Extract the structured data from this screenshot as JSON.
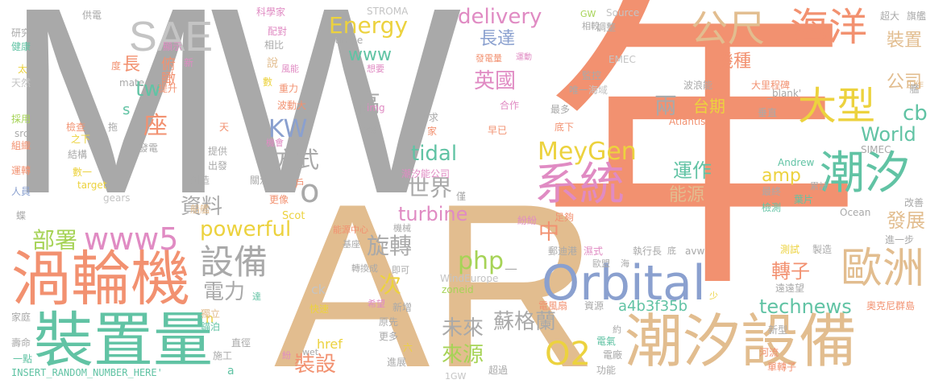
{
  "colors": {
    "gray": "#a9a9a9",
    "orange": "#f29170",
    "tan": "#e2bd8f",
    "teal": "#61c3a4",
    "blue": "#8aa0cf",
    "pink": "#e08bc3",
    "yellow": "#ecd23e",
    "green": "#a6d356",
    "ltgray": "#c4c4c4"
  },
  "words": [
    {
      "id": "mw",
      "text": "MW"
    },
    {
      "id": "nian",
      "text": "年"
    },
    {
      "id": "ar",
      "text": "AR"
    },
    {
      "id": "wolunji",
      "text": "渦輪機"
    },
    {
      "id": "zhuangzhiliang",
      "text": "裝置量"
    },
    {
      "id": "chaoxishebei",
      "text": "潮汐設備"
    },
    {
      "id": "orbital",
      "text": "Orbital"
    },
    {
      "id": "xitong",
      "text": "系統"
    },
    {
      "id": "chaoxi",
      "text": "潮汐"
    },
    {
      "id": "ouzhou",
      "text": "歐洲"
    },
    {
      "id": "haiyang",
      "text": "海洋"
    },
    {
      "id": "gongchi",
      "text": "公尺"
    },
    {
      "id": "daxing",
      "text": "大型"
    },
    {
      "id": "sae",
      "text": "SAE"
    },
    {
      "id": "www5",
      "text": "www5"
    },
    {
      "id": "shebei",
      "text": "設備"
    },
    {
      "id": "o2",
      "text": "O2"
    },
    {
      "id": "meygen",
      "text": "MeyGen"
    },
    {
      "id": "energy",
      "text": "Energy"
    },
    {
      "id": "delivery",
      "text": "delivery"
    },
    {
      "id": "kw",
      "text": "KW"
    },
    {
      "id": "fangshi",
      "text": "方式"
    },
    {
      "id": "shijie",
      "text": "世界"
    },
    {
      "id": "tidal",
      "text": "tidal"
    },
    {
      "id": "turbine",
      "text": "turbine"
    },
    {
      "id": "powerful",
      "text": "powerful"
    },
    {
      "id": "ziliao",
      "text": "資料"
    },
    {
      "id": "bushu",
      "text": "部署"
    },
    {
      "id": "dianli",
      "text": "電力"
    },
    {
      "id": "xuanzhuan",
      "text": "旋轉"
    },
    {
      "id": "php",
      "text": "php"
    },
    {
      "id": "ci",
      "text": "次"
    },
    {
      "id": "weilai",
      "text": "未來"
    },
    {
      "id": "sugelan",
      "text": "蘇格蘭"
    },
    {
      "id": "laiyuan",
      "text": "來源"
    },
    {
      "id": "zhuangshe",
      "text": "裝設"
    },
    {
      "id": "technews",
      "text": "technews"
    },
    {
      "id": "zhuanzi",
      "text": "轉子"
    },
    {
      "id": "fazhan",
      "text": "發展"
    },
    {
      "id": "yunzuo",
      "text": "運作"
    },
    {
      "id": "nengyuan",
      "text": "能源"
    },
    {
      "id": "amp",
      "text": "amp"
    },
    {
      "id": "world",
      "text": "World"
    },
    {
      "id": "cb",
      "text": "cb"
    },
    {
      "id": "liang",
      "text": "兩"
    },
    {
      "id": "taiqi",
      "text": "台期"
    },
    {
      "id": "yingguo",
      "text": "英國"
    },
    {
      "id": "gao",
      "text": "高"
    },
    {
      "id": "www",
      "text": "www"
    },
    {
      "id": "zhangda",
      "text": "長達"
    },
    {
      "id": "jizhong",
      "text": "機種"
    },
    {
      "id": "zhuangzhi",
      "text": "裝置"
    },
    {
      "id": "gongsi",
      "text": "公司"
    },
    {
      "id": "zuo",
      "text": "座"
    },
    {
      "id": "tw",
      "text": "tw"
    },
    {
      "id": "zhang",
      "text": "長"
    },
    {
      "id": "fukan",
      "text": "俯瞰"
    },
    {
      "id": "zhong",
      "text": "中"
    },
    {
      "id": "a4b3f35b",
      "text": "a4b3f35b"
    },
    {
      "id": "href",
      "text": "href"
    },
    {
      "id": "insert",
      "text": "INSERT_RANDOM_NUMBER_HERE'"
    },
    {
      "id": "stroma",
      "text": "STROMA"
    },
    {
      "id": "europe",
      "text": "Europe"
    },
    {
      "id": "atlantis",
      "text": "Atlantis"
    },
    {
      "id": "simec",
      "text": "SIMEC"
    },
    {
      "id": "andrew",
      "text": "Andrew"
    },
    {
      "id": "ocean",
      "text": "Ocean"
    },
    {
      "id": "windeurope",
      "text": "WindEurope"
    },
    {
      "id": "zoneid",
      "text": "zoneid"
    },
    {
      "id": "ck",
      "text": "ck"
    },
    {
      "id": "scot",
      "text": "Scot"
    },
    {
      "id": "target",
      "text": "target"
    },
    {
      "id": "gears",
      "text": "gears"
    },
    {
      "id": "blank",
      "text": "_blank'"
    },
    {
      "id": "emec",
      "text": "EMEC"
    },
    {
      "id": "source",
      "text": "Source"
    },
    {
      "id": "gw",
      "text": "GW"
    },
    {
      "id": "img",
      "text": "img"
    },
    {
      "id": "mate",
      "text": "mate"
    },
    {
      "id": "src",
      "text": "src"
    },
    {
      "id": "avw",
      "text": "avw"
    },
    {
      "id": "wet",
      "text": "wet"
    },
    {
      "id": "gw1",
      "text": "1GW"
    },
    {
      "id": "a",
      "text": "a"
    },
    {
      "id": "n",
      "text": "n"
    },
    {
      "id": "s",
      "text": "s"
    },
    {
      "id": "o",
      "text": "o"
    },
    {
      "id": "gongdian",
      "text": "供電"
    },
    {
      "id": "kexuejia",
      "text": "科學家"
    },
    {
      "id": "peizhi",
      "text": "配對"
    },
    {
      "id": "xiangbi",
      "text": "相比"
    },
    {
      "id": "yanjiu",
      "text": "研究"
    },
    {
      "id": "jiankang",
      "text": "健康"
    },
    {
      "id": "xianshi",
      "text": "顯示"
    },
    {
      "id": "tai",
      "text": "太"
    },
    {
      "id": "du",
      "text": "度"
    },
    {
      "id": "xin",
      "text": "新"
    },
    {
      "id": "tiaozheng",
      "text": "調整"
    },
    {
      "id": "xiangjiao",
      "text": "相較"
    },
    {
      "id": "fadianliang",
      "text": "發電量"
    },
    {
      "id": "yundong",
      "text": "運動"
    },
    {
      "id": "jiankong",
      "text": "監控"
    },
    {
      "id": "haiyu",
      "text": "海域"
    },
    {
      "id": "chaoda",
      "text": "超大"
    },
    {
      "id": "qijian",
      "text": "旗艦"
    },
    {
      "id": "bolangneng",
      "text": "波浪能"
    },
    {
      "id": "dalichengbei",
      "text": "大里程碑"
    },
    {
      "id": "gongzuo",
      "text": "工作"
    },
    {
      "id": "chuizhi",
      "text": "垂直"
    },
    {
      "id": "fengneng",
      "text": "風能"
    },
    {
      "id": "shuo",
      "text": "說"
    },
    {
      "id": "xiangyao",
      "text": "想要"
    },
    {
      "id": "shu",
      "text": "數"
    },
    {
      "id": "zhongli",
      "text": "重力"
    },
    {
      "id": "bodongda",
      "text": "波動大"
    },
    {
      "id": "tisheng",
      "text": "提升"
    },
    {
      "id": "tianran",
      "text": "天然"
    },
    {
      "id": "caiyong",
      "text": "採用"
    },
    {
      "id": "jiancha",
      "text": "檢查"
    },
    {
      "id": "zhixia",
      "text": "之下"
    },
    {
      "id": "tuo",
      "text": "拖"
    },
    {
      "id": "tian",
      "text": "天"
    },
    {
      "id": "zuzhi",
      "text": "組織"
    },
    {
      "id": "fadian",
      "text": "發電"
    },
    {
      "id": "jiegou",
      "text": "結構"
    },
    {
      "id": "tigong",
      "text": "提供"
    },
    {
      "id": "chufa",
      "text": "出發"
    },
    {
      "id": "yunzhuan",
      "text": "運轉"
    },
    {
      "id": "shuyi",
      "text": "數一"
    },
    {
      "id": "chuangzao",
      "text": "創造"
    },
    {
      "id": "renyuan",
      "text": "人員"
    },
    {
      "id": "jihui",
      "text": "機會"
    },
    {
      "id": "guanzhu",
      "text": "關注"
    },
    {
      "id": "hu",
      "text": "戶"
    },
    {
      "id": "gengxiang",
      "text": "更像"
    },
    {
      "id": "chuanjian",
      "text": "船艦"
    },
    {
      "id": "die",
      "text": "蝶"
    },
    {
      "id": "xuqiu",
      "text": "需求"
    },
    {
      "id": "jia",
      "text": "家"
    },
    {
      "id": "jizu",
      "text": "機組"
    },
    {
      "id": "zaoyi",
      "text": "早已"
    },
    {
      "id": "hezuo",
      "text": "合作"
    },
    {
      "id": "chaoxinenggongsi",
      "text": "潮汐能公司"
    },
    {
      "id": "jin",
      "text": "僅"
    },
    {
      "id": "fenfen",
      "text": "紛紛"
    },
    {
      "id": "zugou",
      "text": "足夠"
    },
    {
      "id": "zuiduo",
      "text": "最多"
    },
    {
      "id": "dixia",
      "text": "底下"
    },
    {
      "id": "weiyi",
      "text": "唯一"
    },
    {
      "id": "jian",
      "text": "艦"
    },
    {
      "id": "zuizhong",
      "text": "最終"
    },
    {
      "id": "leiji",
      "text": "累計"
    },
    {
      "id": "jiance",
      "text": "檢測"
    },
    {
      "id": "yepian",
      "text": "葉片"
    },
    {
      "id": "gaishan",
      "text": "改善"
    },
    {
      "id": "nengyuanzhongxin",
      "text": "能源中心"
    },
    {
      "id": "jixie",
      "text": "機械"
    },
    {
      "id": "jiyuan",
      "text": "基座"
    },
    {
      "id": "zhuanhuancheng",
      "text": "轉換成"
    },
    {
      "id": "jike",
      "text": "即可"
    },
    {
      "id": "zhixingzhang",
      "text": "執行長"
    },
    {
      "id": "di",
      "text": "底"
    },
    {
      "id": "gudigang",
      "text": "郵迪港"
    },
    {
      "id": "shi",
      "text": "濕式"
    },
    {
      "id": "oumeng",
      "text": "歐盟"
    },
    {
      "id": "hai",
      "text": "海"
    },
    {
      "id": "ceshi",
      "text": "測試"
    },
    {
      "id": "zhizao",
      "text": "製造"
    },
    {
      "id": "jinyibu",
      "text": "進一步"
    },
    {
      "id": "yuanyuanwang",
      "text": "遠遠望"
    },
    {
      "id": "aokeni",
      "text": "奧克尼群島"
    },
    {
      "id": "dianfengshan",
      "text": "電風扇"
    },
    {
      "id": "ziyuan",
      "text": "資源"
    },
    {
      "id": "yue",
      "text": "約"
    },
    {
      "id": "dianqi",
      "text": "電氣"
    },
    {
      "id": "dianchang",
      "text": "電廠"
    },
    {
      "id": "gongneng",
      "text": "功能"
    },
    {
      "id": "chaoguo",
      "text": "超過"
    },
    {
      "id": "xinxing",
      "text": "新型"
    },
    {
      "id": "heliu",
      "text": "河流"
    },
    {
      "id": "danzhuanzi",
      "text": "單轉子"
    },
    {
      "id": "duli",
      "text": "獨立"
    },
    {
      "id": "maobo",
      "text": "錨泊"
    },
    {
      "id": "zhijing",
      "text": "直徑"
    },
    {
      "id": "shigong",
      "text": "施工"
    },
    {
      "id": "kuaisu",
      "text": "快速"
    },
    {
      "id": "xiwang",
      "text": "希望"
    },
    {
      "id": "xinzeng",
      "text": "新增"
    },
    {
      "id": "yuanxian",
      "text": "原先"
    },
    {
      "id": "gengduo",
      "text": "更多"
    },
    {
      "id": "jinzhan",
      "text": "進展"
    },
    {
      "id": "liu",
      "text": "六"
    },
    {
      "id": "jiating",
      "text": "家庭"
    },
    {
      "id": "shouming",
      "text": "壽命"
    },
    {
      "id": "yidian",
      "text": "一點"
    },
    {
      "id": "da",
      "text": "達"
    },
    {
      "id": "shao",
      "text": "少"
    },
    {
      "id": "fen",
      "text": "紛"
    },
    {
      "id": "dash",
      "text": "—"
    }
  ]
}
